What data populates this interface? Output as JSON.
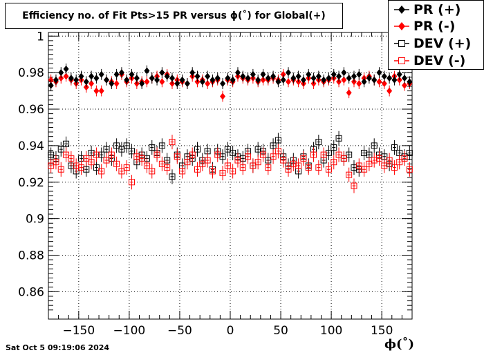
{
  "chart_data": {
    "type": "scatter",
    "title": "Efficiency no. of Fit Pts>15 PR versus ϕ(˚) for Global(+)",
    "xlabel": "ϕ(˚)",
    "ylabel": "",
    "xlim": [
      -180,
      180
    ],
    "ylim": [
      0.845,
      1.002
    ],
    "x_ticks": [
      -150,
      -100,
      -50,
      0,
      50,
      100,
      150
    ],
    "x_tick_labels": [
      "−150",
      "−100",
      "−50",
      "0",
      "50",
      "100",
      "150"
    ],
    "y_ticks": [
      0.86,
      0.88,
      0.9,
      0.92,
      0.94,
      0.96,
      0.98,
      1
    ],
    "y_tick_labels": [
      "0.86",
      "0.88",
      "0.9",
      "0.92",
      "0.94",
      "0.96",
      "0.98",
      "1"
    ],
    "grid": true,
    "legend_position": "top-right",
    "series": [
      {
        "name": "PR (+)",
        "color": "#000000",
        "marker": "filled-diamond",
        "x": [
          -177.5,
          -172.5,
          -167.5,
          -162.5,
          -157.5,
          -152.5,
          -147.5,
          -142.5,
          -137.5,
          -132.5,
          -127.5,
          -122.5,
          -117.5,
          -112.5,
          -107.5,
          -102.5,
          -97.5,
          -92.5,
          -87.5,
          -82.5,
          -77.5,
          -72.5,
          -67.5,
          -62.5,
          -57.5,
          -52.5,
          -47.5,
          -42.5,
          -37.5,
          -32.5,
          -27.5,
          -22.5,
          -17.5,
          -12.5,
          -7.5,
          -2.5,
          2.5,
          7.5,
          12.5,
          17.5,
          22.5,
          27.5,
          32.5,
          37.5,
          42.5,
          47.5,
          52.5,
          57.5,
          62.5,
          67.5,
          72.5,
          77.5,
          82.5,
          87.5,
          92.5,
          97.5,
          102.5,
          107.5,
          112.5,
          117.5,
          122.5,
          127.5,
          132.5,
          137.5,
          142.5,
          147.5,
          152.5,
          157.5,
          162.5,
          167.5,
          172.5,
          177.5
        ],
        "y": [
          0.973,
          0.976,
          0.98,
          0.982,
          0.977,
          0.976,
          0.978,
          0.975,
          0.978,
          0.977,
          0.979,
          0.976,
          0.974,
          0.979,
          0.98,
          0.976,
          0.979,
          0.977,
          0.974,
          0.981,
          0.977,
          0.976,
          0.98,
          0.978,
          0.977,
          0.974,
          0.976,
          0.974,
          0.98,
          0.978,
          0.975,
          0.978,
          0.976,
          0.977,
          0.974,
          0.977,
          0.976,
          0.98,
          0.978,
          0.977,
          0.979,
          0.976,
          0.979,
          0.977,
          0.978,
          0.975,
          0.976,
          0.98,
          0.977,
          0.978,
          0.976,
          0.979,
          0.977,
          0.978,
          0.976,
          0.977,
          0.979,
          0.978,
          0.98,
          0.977,
          0.978,
          0.979,
          0.975,
          0.977,
          0.976,
          0.98,
          0.978,
          0.977,
          0.976,
          0.979,
          0.977,
          0.975
        ],
        "yerr": 0.003
      },
      {
        "name": "PR (-)",
        "color": "#ff0000",
        "marker": "filled-diamond",
        "x": [
          -177.5,
          -172.5,
          -167.5,
          -162.5,
          -157.5,
          -152.5,
          -147.5,
          -142.5,
          -137.5,
          -132.5,
          -127.5,
          -122.5,
          -117.5,
          -112.5,
          -107.5,
          -102.5,
          -97.5,
          -92.5,
          -87.5,
          -82.5,
          -77.5,
          -72.5,
          -67.5,
          -62.5,
          -57.5,
          -52.5,
          -47.5,
          -42.5,
          -37.5,
          -32.5,
          -27.5,
          -22.5,
          -17.5,
          -12.5,
          -7.5,
          -2.5,
          2.5,
          7.5,
          12.5,
          17.5,
          22.5,
          27.5,
          32.5,
          37.5,
          42.5,
          47.5,
          52.5,
          57.5,
          62.5,
          67.5,
          72.5,
          77.5,
          82.5,
          87.5,
          92.5,
          97.5,
          102.5,
          107.5,
          112.5,
          117.5,
          122.5,
          127.5,
          132.5,
          137.5,
          142.5,
          147.5,
          152.5,
          157.5,
          162.5,
          167.5,
          172.5,
          177.5
        ],
        "y": [
          0.976,
          0.975,
          0.977,
          0.978,
          0.976,
          0.974,
          0.976,
          0.972,
          0.974,
          0.97,
          0.97,
          0.976,
          0.975,
          0.974,
          0.979,
          0.975,
          0.977,
          0.974,
          0.975,
          0.975,
          0.977,
          0.978,
          0.975,
          0.979,
          0.974,
          0.976,
          0.975,
          0.974,
          0.978,
          0.975,
          0.976,
          0.974,
          0.975,
          0.976,
          0.967,
          0.976,
          0.975,
          0.978,
          0.977,
          0.976,
          0.977,
          0.975,
          0.976,
          0.976,
          0.977,
          0.976,
          0.979,
          0.975,
          0.976,
          0.975,
          0.974,
          0.977,
          0.974,
          0.976,
          0.975,
          0.976,
          0.977,
          0.975,
          0.976,
          0.969,
          0.975,
          0.974,
          0.977,
          0.978,
          0.976,
          0.975,
          0.974,
          0.97,
          0.978,
          0.976,
          0.973,
          0.974
        ],
        "yerr": 0.003
      },
      {
        "name": "DEV (+)",
        "color": "#000000",
        "marker": "open-square",
        "x": [
          -177.5,
          -172.5,
          -167.5,
          -162.5,
          -157.5,
          -152.5,
          -147.5,
          -142.5,
          -137.5,
          -132.5,
          -127.5,
          -122.5,
          -117.5,
          -112.5,
          -107.5,
          -102.5,
          -97.5,
          -92.5,
          -87.5,
          -82.5,
          -77.5,
          -72.5,
          -67.5,
          -62.5,
          -57.5,
          -52.5,
          -47.5,
          -42.5,
          -37.5,
          -32.5,
          -27.5,
          -22.5,
          -17.5,
          -12.5,
          -7.5,
          -2.5,
          2.5,
          7.5,
          12.5,
          17.5,
          22.5,
          27.5,
          32.5,
          37.5,
          42.5,
          47.5,
          52.5,
          57.5,
          62.5,
          67.5,
          72.5,
          77.5,
          82.5,
          87.5,
          92.5,
          97.5,
          102.5,
          107.5,
          112.5,
          117.5,
          122.5,
          127.5,
          132.5,
          137.5,
          142.5,
          147.5,
          152.5,
          157.5,
          162.5,
          167.5,
          172.5,
          177.5
        ],
        "y": [
          0.935,
          0.933,
          0.938,
          0.941,
          0.929,
          0.926,
          0.933,
          0.927,
          0.936,
          0.928,
          0.935,
          0.938,
          0.933,
          0.94,
          0.938,
          0.94,
          0.937,
          0.931,
          0.935,
          0.933,
          0.939,
          0.936,
          0.94,
          0.932,
          0.923,
          0.935,
          0.929,
          0.934,
          0.933,
          0.938,
          0.932,
          0.937,
          0.927,
          0.937,
          0.934,
          0.938,
          0.936,
          0.934,
          0.933,
          0.937,
          0.929,
          0.938,
          0.937,
          0.932,
          0.94,
          0.943,
          0.934,
          0.929,
          0.932,
          0.926,
          0.934,
          0.929,
          0.938,
          0.942,
          0.932,
          0.936,
          0.939,
          0.944,
          0.933,
          0.935,
          0.928,
          0.927,
          0.936,
          0.935,
          0.94,
          0.935,
          0.934,
          0.93,
          0.939,
          0.936,
          0.934,
          0.936
        ],
        "yerr": 0.004
      },
      {
        "name": "DEV (-)",
        "color": "#ff0000",
        "marker": "open-square",
        "x": [
          -177.5,
          -172.5,
          -167.5,
          -162.5,
          -157.5,
          -152.5,
          -147.5,
          -142.5,
          -137.5,
          -132.5,
          -127.5,
          -122.5,
          -117.5,
          -112.5,
          -107.5,
          -102.5,
          -97.5,
          -92.5,
          -87.5,
          -82.5,
          -77.5,
          -72.5,
          -67.5,
          -62.5,
          -57.5,
          -52.5,
          -47.5,
          -42.5,
          -37.5,
          -32.5,
          -27.5,
          -22.5,
          -17.5,
          -12.5,
          -7.5,
          -2.5,
          2.5,
          7.5,
          12.5,
          17.5,
          22.5,
          27.5,
          32.5,
          37.5,
          42.5,
          47.5,
          52.5,
          57.5,
          62.5,
          67.5,
          72.5,
          77.5,
          82.5,
          87.5,
          92.5,
          97.5,
          102.5,
          107.5,
          112.5,
          117.5,
          122.5,
          127.5,
          132.5,
          137.5,
          142.5,
          147.5,
          152.5,
          157.5,
          162.5,
          167.5,
          172.5,
          177.5
        ],
        "y": [
          0.929,
          0.931,
          0.927,
          0.935,
          0.933,
          0.929,
          0.928,
          0.933,
          0.931,
          0.935,
          0.926,
          0.932,
          0.935,
          0.93,
          0.926,
          0.928,
          0.92,
          0.934,
          0.933,
          0.929,
          0.926,
          0.935,
          0.93,
          0.928,
          0.942,
          0.934,
          0.926,
          0.931,
          0.935,
          0.927,
          0.93,
          0.932,
          0.926,
          0.935,
          0.925,
          0.929,
          0.926,
          0.932,
          0.928,
          0.934,
          0.929,
          0.931,
          0.935,
          0.928,
          0.934,
          0.937,
          0.932,
          0.927,
          0.93,
          0.929,
          0.933,
          0.928,
          0.935,
          0.928,
          0.935,
          0.927,
          0.931,
          0.935,
          0.933,
          0.924,
          0.918,
          0.929,
          0.927,
          0.93,
          0.932,
          0.933,
          0.929,
          0.932,
          0.928,
          0.931,
          0.933,
          0.927
        ],
        "yerr": 0.004
      }
    ]
  },
  "footer": {
    "datestamp": "Sat Oct  5 09:19:06 2024"
  }
}
